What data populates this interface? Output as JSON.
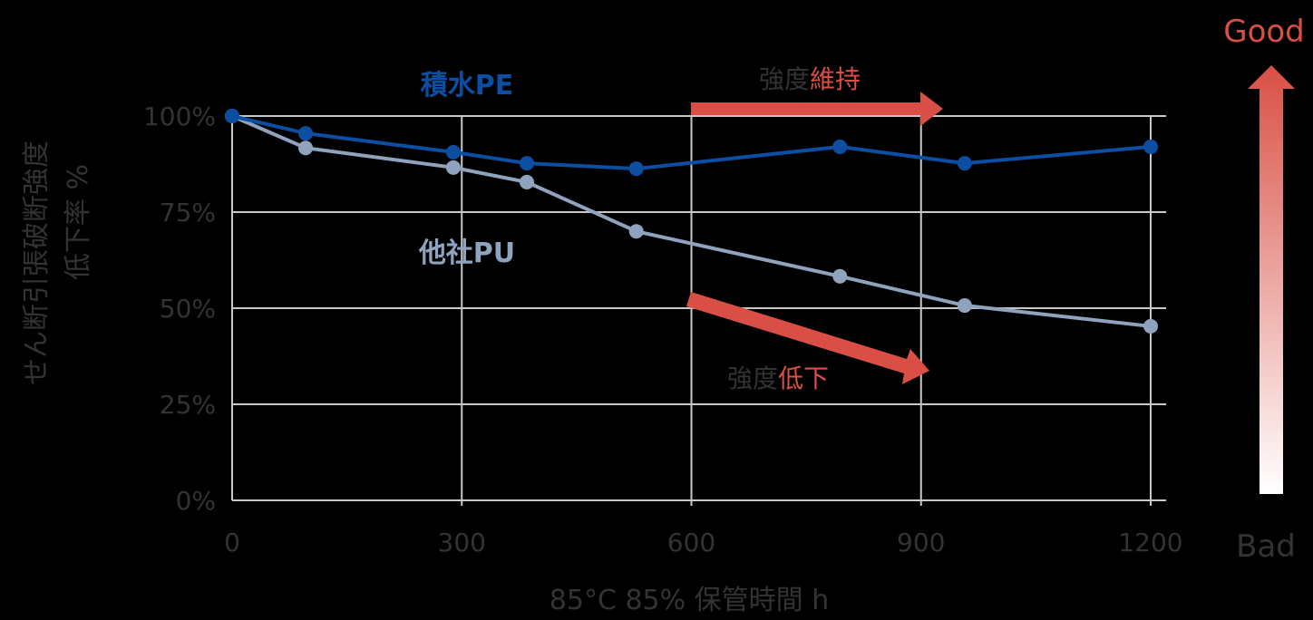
{
  "chart_data": {
    "type": "line",
    "title": "",
    "xlabel": "85°C 85% 保管時間 h",
    "ylabel_line1": "せん断引張破断強度",
    "ylabel_line2": "低下率 %",
    "xlim": [
      0,
      1200
    ],
    "ylim": [
      0,
      100
    ],
    "x_ticks": [
      "0",
      "300",
      "600",
      "900",
      "1200"
    ],
    "y_ticks": [
      "0%",
      "25%",
      "50%",
      "75%",
      "100%"
    ],
    "grid": true,
    "series": [
      {
        "name": "積水PE",
        "color": "#0B4EA2",
        "x": [
          0,
          96,
          289,
          385,
          528,
          794,
          957,
          1200
        ],
        "values": [
          100,
          95.5,
          90.6,
          87.7,
          86.3,
          92.0,
          87.7,
          92.0
        ]
      },
      {
        "name": "他社PU",
        "color": "#8FA3BF",
        "x": [
          0,
          96,
          289,
          385,
          528,
          794,
          957,
          1200
        ],
        "values": [
          100,
          91.7,
          86.6,
          82.8,
          70.0,
          58.3,
          50.7,
          45.3
        ]
      }
    ],
    "annotations": [
      {
        "text_black": "強度",
        "text_red": "維持",
        "arrow": "horizontal"
      },
      {
        "text_black": "強度",
        "text_red": "低下",
        "arrow": "diagonal-down"
      }
    ],
    "scale_indicator": {
      "top": "Good",
      "bottom": "Bad"
    }
  },
  "colors": {
    "accent_red": "#D94F45",
    "axis_text": "#333333",
    "grid": "#C8C8C8"
  }
}
